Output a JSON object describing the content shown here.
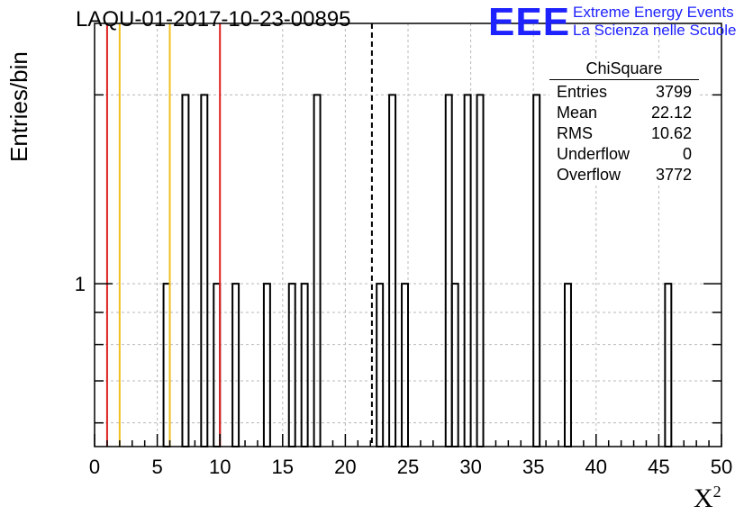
{
  "title": "LAQU-01-2017-10-23-00895",
  "logo": {
    "mark": "EEE",
    "line1": "Extreme Energy Events",
    "line2": "La Scienza nelle Scuole"
  },
  "stats_box": {
    "name": "ChiSquare",
    "rows": [
      {
        "label": "Entries",
        "value": "3799"
      },
      {
        "label": "Mean",
        "value": "22.12"
      },
      {
        "label": "RMS",
        "value": "10.62"
      },
      {
        "label": "Underflow",
        "value": "0"
      },
      {
        "label": "Overflow",
        "value": "3772"
      }
    ]
  },
  "chart_data": {
    "type": "bar",
    "title": "LAQU-01-2017-10-23-00895",
    "xlabel": "X",
    "xlabel_superscript": "2",
    "ylabel": "Entries/bin",
    "xlim": [
      0,
      50
    ],
    "ylim": [
      0.55,
      2.6
    ],
    "yscale": "log",
    "grid": true,
    "bin_width": 0.5,
    "x_ticks": [
      "0",
      "5",
      "10",
      "15",
      "20",
      "25",
      "30",
      "35",
      "40",
      "45",
      "50"
    ],
    "y_ticks": [
      "1"
    ],
    "bins": [
      {
        "x": 5.5,
        "count": 1
      },
      {
        "x": 7.0,
        "count": 2
      },
      {
        "x": 8.5,
        "count": 2
      },
      {
        "x": 9.5,
        "count": 1
      },
      {
        "x": 11.0,
        "count": 1
      },
      {
        "x": 13.5,
        "count": 1
      },
      {
        "x": 15.5,
        "count": 1
      },
      {
        "x": 16.5,
        "count": 1
      },
      {
        "x": 17.5,
        "count": 2
      },
      {
        "x": 22.5,
        "count": 1
      },
      {
        "x": 23.5,
        "count": 2
      },
      {
        "x": 24.5,
        "count": 1
      },
      {
        "x": 28.0,
        "count": 2
      },
      {
        "x": 28.5,
        "count": 1
      },
      {
        "x": 29.5,
        "count": 2
      },
      {
        "x": 30.5,
        "count": 2
      },
      {
        "x": 35.0,
        "count": 2
      },
      {
        "x": 37.5,
        "count": 1
      },
      {
        "x": 45.5,
        "count": 1
      }
    ],
    "reference_lines": [
      {
        "x": 1.0,
        "color": "#e02020",
        "style": "solid"
      },
      {
        "x": 2.0,
        "color": "#f0c020",
        "style": "solid"
      },
      {
        "x": 6.0,
        "color": "#f0c020",
        "style": "solid"
      },
      {
        "x": 10.0,
        "color": "#e02020",
        "style": "solid"
      },
      {
        "x": 22.12,
        "color": "#000000",
        "style": "dashed"
      }
    ]
  }
}
